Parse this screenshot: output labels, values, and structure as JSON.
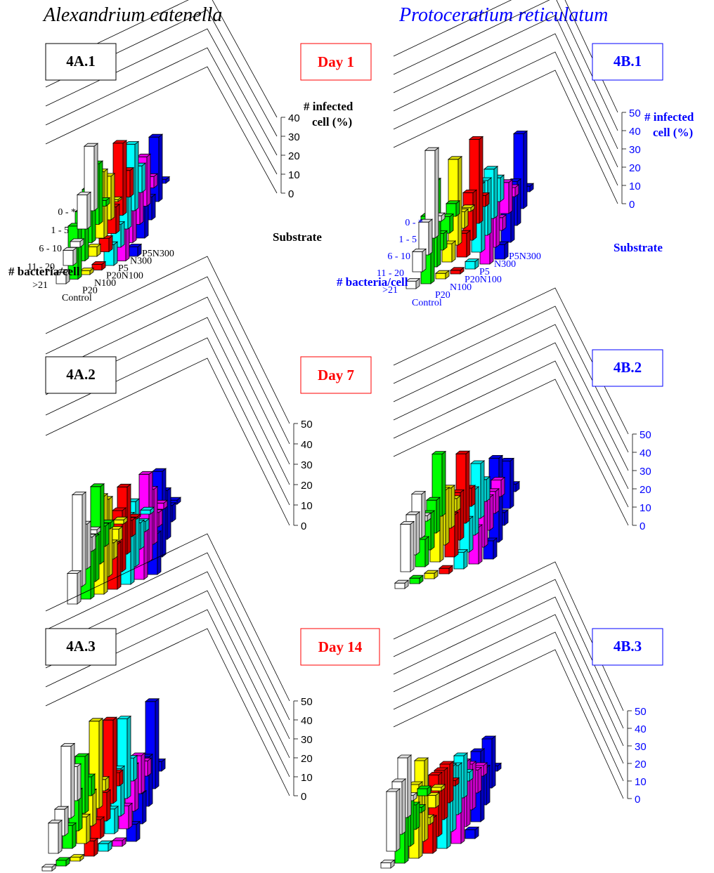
{
  "species": [
    "Alexandrium catenella",
    "Protoceratium reticulatum"
  ],
  "species_colors": [
    "#000000",
    "#0000ff"
  ],
  "days": [
    "Day 1",
    "Day 7",
    "Day 14"
  ],
  "day_color": "#ff0000",
  "axis_label": [
    "# infected",
    "cell (%)"
  ],
  "depth_label": "Substrate",
  "row_label": "# bacteria/cell",
  "series_colors": {
    "Control": "#ffffff",
    "P20": "#00ff00",
    "N100": "#ffff00",
    "P20N100": "#ff0000",
    "P5": "#00ffff",
    "N300": "#ff00ff",
    "P5N300": "#0000ff"
  },
  "chart_data": [
    {
      "id": "4A.1",
      "day": "Day 1",
      "species": "Alexandrium catenella",
      "type": "bar",
      "categories": [
        "0 - *",
        "1 - 5",
        "6 - 10",
        "11 - 20",
        ">21"
      ],
      "substrates": [
        "Control",
        "P20",
        "N100",
        "P20N100",
        "P5",
        "N300",
        "P5N300"
      ],
      "zlim": [
        0,
        40
      ],
      "zticks": [
        0,
        10,
        20,
        30,
        40
      ],
      "series": [
        {
          "name": "Control",
          "values": [
            34,
            18,
            3,
            8,
            6
          ]
        },
        {
          "name": "P20",
          "values": [
            3,
            32,
            28,
            26,
            28
          ]
        },
        {
          "name": "N100",
          "values": [
            1,
            23,
            35,
            5,
            2
          ]
        },
        {
          "name": "P20N100",
          "values": [
            14,
            38,
            14,
            7,
            3
          ]
        },
        {
          "name": "P5",
          "values": [
            14,
            35,
            20,
            12,
            11
          ]
        },
        {
          "name": "N300",
          "values": [
            6,
            26,
            21,
            22,
            17
          ]
        },
        {
          "name": "P5N300",
          "values": [
            2,
            34,
            12,
            24,
            5
          ]
        }
      ]
    },
    {
      "id": "4B.1",
      "day": "Day 1",
      "species": "Protoceratium reticulatum",
      "type": "bar",
      "categories": [
        "0 - *",
        "1 - 5",
        "6 - 10",
        "11 - 20",
        ">21"
      ],
      "substrates": [
        "Control",
        "P20",
        "N100",
        "P20N100",
        "P5",
        "N300",
        "P5N300"
      ],
      "zlim": [
        0,
        50
      ],
      "zticks": [
        0,
        10,
        20,
        30,
        40,
        50
      ],
      "series": [
        {
          "name": "Control",
          "values": [
            3,
            48,
            18,
            11,
            4
          ]
        },
        {
          "name": "P20",
          "values": [
            7,
            9,
            9,
            47,
            37
          ]
        },
        {
          "name": "N100",
          "values": [
            2,
            9,
            47,
            10,
            3
          ]
        },
        {
          "name": "P20N100",
          "values": [
            6,
            46,
            26,
            13,
            2
          ]
        },
        {
          "name": "P5",
          "values": [
            13,
            27,
            30,
            37,
            4
          ]
        },
        {
          "name": "N300",
          "values": [
            5,
            17,
            7,
            37,
            25
          ]
        },
        {
          "name": "P5N300",
          "values": [
            3,
            41,
            24,
            28,
            8
          ]
        }
      ]
    },
    {
      "id": "4A.2",
      "day": "Day 7",
      "species": "Alexandrium catenella",
      "type": "bar",
      "categories": [
        "0 - *",
        "1 - 5",
        "6 - 10",
        "11 - 20",
        ">21"
      ],
      "substrates": [
        "Control",
        "P20",
        "N100",
        "P20N100",
        "P5",
        "N300",
        "P5N300"
      ],
      "zlim": [
        0,
        50
      ],
      "zticks": [
        0,
        10,
        20,
        30,
        40,
        50
      ],
      "series": [
        {
          "name": "Control",
          "values": [
            2,
            7,
            22,
            45,
            15
          ]
        },
        {
          "name": "P20",
          "values": [
            3,
            10,
            38,
            22,
            25
          ]
        },
        {
          "name": "N100",
          "values": [
            2,
            6,
            8,
            38,
            48
          ]
        },
        {
          "name": "P20N100",
          "values": [
            1,
            8,
            33,
            30,
            22
          ]
        },
        {
          "name": "P5",
          "values": [
            2,
            5,
            13,
            32,
            34
          ]
        },
        {
          "name": "N300",
          "values": [
            3,
            7,
            27,
            43,
            25
          ]
        },
        {
          "name": "P5N300",
          "values": [
            2,
            8,
            24,
            42,
            20
          ]
        }
      ]
    },
    {
      "id": "4B.2",
      "day": "Day 7",
      "species": "Protoceratium reticulatum",
      "type": "bar",
      "categories": [
        "0 - *",
        "1 - 5",
        "6 - 10",
        "11 - 20",
        ">21"
      ],
      "substrates": [
        "Control",
        "P20",
        "N100",
        "P20N100",
        "P5",
        "N300",
        "P5N300"
      ],
      "zlim": [
        0,
        50
      ],
      "zticks": [
        0,
        10,
        20,
        30,
        40,
        50
      ],
      "series": [
        {
          "name": "Control",
          "values": [
            3,
            24,
            22,
            26,
            3
          ]
        },
        {
          "name": "P20",
          "values": [
            34,
            18,
            20,
            15,
            3
          ]
        },
        {
          "name": "N100",
          "values": [
            7,
            22,
            30,
            30,
            3
          ]
        },
        {
          "name": "P20N100",
          "values": [
            10,
            38,
            26,
            23,
            3
          ]
        },
        {
          "name": "P5",
          "values": [
            12,
            30,
            25,
            18,
            9
          ]
        },
        {
          "name": "N300",
          "values": [
            9,
            12,
            18,
            30,
            20
          ]
        },
        {
          "name": "P5N300",
          "values": [
            4,
            26,
            7,
            46,
            10
          ]
        }
      ]
    },
    {
      "id": "4A.3",
      "day": "Day 14",
      "species": "Alexandrium catenella",
      "type": "bar",
      "categories": [
        "0 - *",
        "1 - 5",
        "6 - 10",
        "11 - 20",
        ">21"
      ],
      "substrates": [
        "Control",
        "P20",
        "N100",
        "P20N100",
        "P5",
        "N300",
        "P5N300"
      ],
      "zlim": [
        0,
        50
      ],
      "zticks": [
        0,
        10,
        20,
        30,
        40,
        50
      ],
      "series": [
        {
          "name": "Control",
          "values": [
            18,
            38,
            14,
            16,
            2
          ]
        },
        {
          "name": "P20",
          "values": [
            10,
            30,
            21,
            12,
            3
          ]
        },
        {
          "name": "N100",
          "values": [
            6,
            46,
            18,
            14,
            2
          ]
        },
        {
          "name": "P20N100",
          "values": [
            7,
            44,
            15,
            10,
            8
          ]
        },
        {
          "name": "P5",
          "values": [
            12,
            42,
            25,
            13,
            4
          ]
        },
        {
          "name": "N300",
          "values": [
            8,
            20,
            24,
            12,
            3
          ]
        },
        {
          "name": "P5N300",
          "values": [
            5,
            46,
            26,
            16,
            9
          ]
        }
      ]
    },
    {
      "id": "4B.3",
      "day": "Day 14",
      "species": "Protoceratium reticulatum",
      "type": "bar",
      "categories": [
        "0 - *",
        "1 - 5",
        "6 - 10",
        "11 - 20",
        ">21"
      ],
      "substrates": [
        "Control",
        "P20",
        "N100",
        "P20N100",
        "P5",
        "N300",
        "P5N300"
      ],
      "zlim": [
        0,
        50
      ],
      "zticks": [
        0,
        10,
        20,
        30,
        40,
        50
      ],
      "series": [
        {
          "name": "Control",
          "values": [
            3,
            34,
            30,
            34,
            3
          ]
        },
        {
          "name": "P20",
          "values": [
            4,
            3,
            14,
            28,
            42
          ]
        },
        {
          "name": "N100",
          "values": [
            2,
            7,
            4,
            46,
            42
          ]
        },
        {
          "name": "P20N100",
          "values": [
            3,
            22,
            28,
            35,
            20
          ]
        },
        {
          "name": "P5",
          "values": [
            5,
            24,
            28,
            37,
            28
          ]
        },
        {
          "name": "N300",
          "values": [
            6,
            13,
            26,
            37,
            40
          ]
        },
        {
          "name": "P5N300",
          "values": [
            3,
            28,
            21,
            40,
            5
          ]
        }
      ]
    }
  ]
}
